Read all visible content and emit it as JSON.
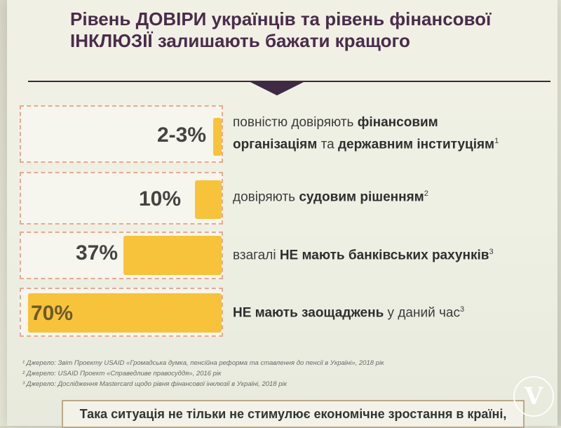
{
  "title": {
    "line1": "Рівень ДОВІРИ українців та рівень фінансової",
    "line2": "ІНКЛЮЗІЇ залишають бажати кращого"
  },
  "rows": [
    {
      "percent": "2-3%",
      "value": 2.5,
      "text_a": "повністю довіряють ",
      "bold_a": "фінансовим",
      "bold_b": "організаціям",
      "text_b": " та ",
      "bold_c": "державним інституціям",
      "sup": "1"
    },
    {
      "percent": "10%",
      "value": 10,
      "text_a": "довіряють ",
      "bold_a": "судовим рішенням",
      "sup": "2"
    },
    {
      "percent": "37%",
      "value": 37,
      "text_a": "взагалі ",
      "bold_a": "НЕ мають банківських рахунків",
      "sup": "3"
    },
    {
      "percent": "70%",
      "value": 70,
      "bold_a": "НЕ мають заощаджень",
      "text_a": " у даний час",
      "sup": "3"
    }
  ],
  "footnotes": [
    "¹ Джерело: Звіт Проекту USAID «Громадська думка, пенсійна реформа та ставлення до пенсії в Україні», 2018 рік",
    "² Джерело: USAID Проект «Справедливе правосуддя», 2016 рік",
    "³ Джерело: Дослідження Mastercard щодо рівня фінансової інклюзії в Україні, 2018 рік"
  ],
  "bottom_text": "Така ситуація не тільки не стимулює економічне зростання в країні,",
  "logo_letter": "V",
  "colors": {
    "bar": "#f7c33a",
    "title": "#4a2c4a",
    "box_border": "#e9a98f"
  }
}
